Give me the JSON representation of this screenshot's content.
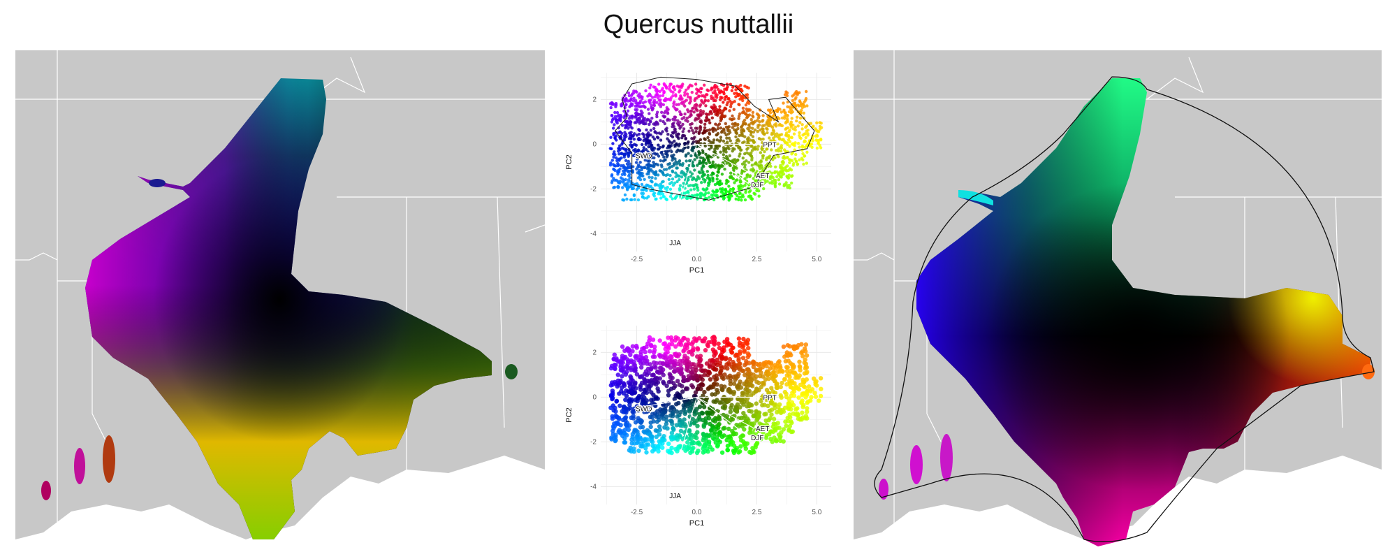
{
  "title": "Quercus nuttallii",
  "colors": {
    "map_background": "#c8c8c8",
    "state_border": "#ffffff",
    "water": "#ffffff",
    "grid": "#e9e9e9"
  },
  "maps": {
    "left": {
      "type": "map",
      "style": "terrain-textured climate color ramp"
    },
    "right": {
      "type": "map",
      "style": "smoothed climate color ramp with hull outline"
    }
  },
  "chart_data": [
    {
      "type": "scatter",
      "title": "",
      "xlabel": "PC1",
      "ylabel": "PC2",
      "xlim": [
        -4.0,
        5.6
      ],
      "ylim": [
        -4.8,
        3.2
      ],
      "xticks": [
        "-2.5",
        "0.0",
        "2.5",
        "5.0"
      ],
      "xtick_values": [
        -2.5,
        0.0,
        2.5,
        5.0
      ],
      "yticks": [
        "2",
        "0",
        "-2",
        "-4"
      ],
      "ytick_values": [
        2,
        0,
        -2,
        -4
      ],
      "grid": true,
      "loadings": [
        {
          "label": "PPT",
          "x": 2.7,
          "y": 0.0
        },
        {
          "label": "SWD",
          "x": -2.6,
          "y": -0.5
        },
        {
          "label": "AET",
          "x": 2.4,
          "y": -1.4
        },
        {
          "label": "DJF",
          "x": 2.2,
          "y": -1.8
        },
        {
          "label": "JJA",
          "x": -1.2,
          "y": -4.4
        }
      ],
      "hull_outline": true
    },
    {
      "type": "scatter",
      "title": "",
      "xlabel": "PC1",
      "ylabel": "PC2",
      "xlim": [
        -4.0,
        5.6
      ],
      "ylim": [
        -4.8,
        3.2
      ],
      "xticks": [
        "-2.5",
        "0.0",
        "2.5",
        "5.0"
      ],
      "xtick_values": [
        -2.5,
        0.0,
        2.5,
        5.0
      ],
      "yticks": [
        "2",
        "0",
        "-2",
        "-4"
      ],
      "ytick_values": [
        2,
        0,
        -2,
        -4
      ],
      "grid": true,
      "loadings": [
        {
          "label": "PPT",
          "x": 2.7,
          "y": 0.0
        },
        {
          "label": "SWD",
          "x": -2.6,
          "y": -0.5
        },
        {
          "label": "AET",
          "x": 2.4,
          "y": -1.4
        },
        {
          "label": "DJF",
          "x": 2.2,
          "y": -1.8
        },
        {
          "label": "JJA",
          "x": -1.2,
          "y": -4.4
        }
      ],
      "hull_outline": false
    }
  ]
}
